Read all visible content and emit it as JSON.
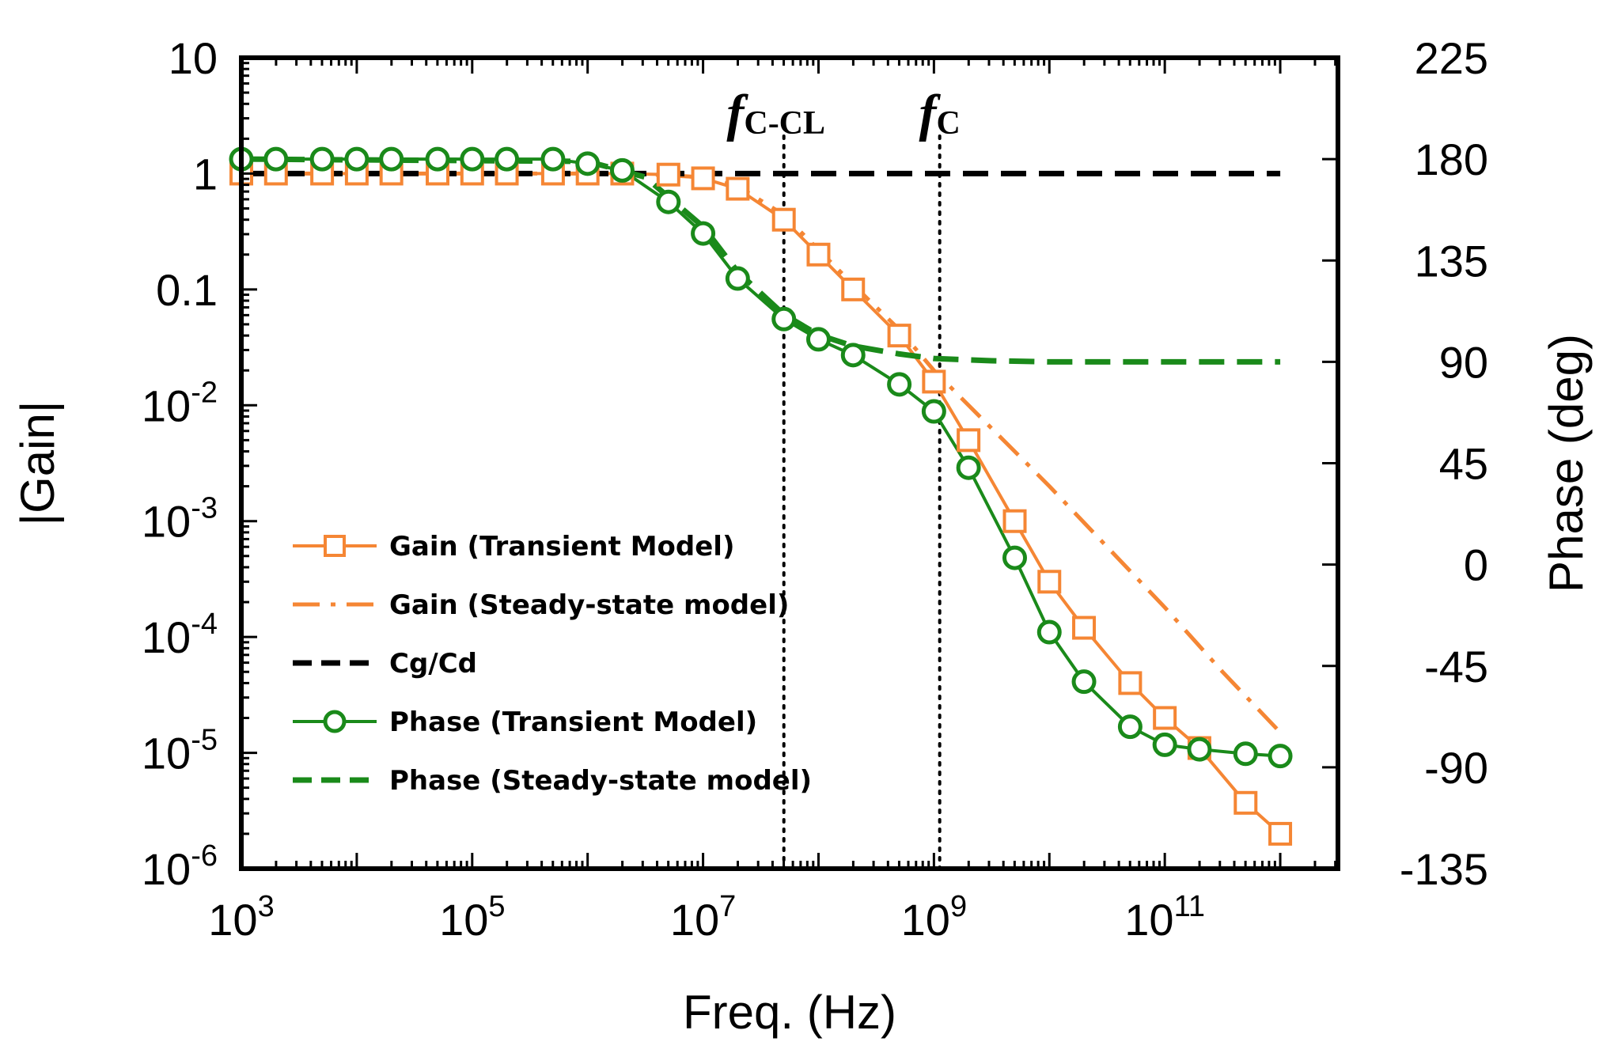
{
  "chart_data": {
    "type": "line",
    "xlabel": "Freq. (Hz)",
    "ylabel_left": "|Gain|",
    "ylabel_right": "Phase (deg)",
    "x_scale": "log",
    "xlim_exp": [
      3,
      12.5
    ],
    "x_ticks": [
      {
        "base": "10",
        "exp": "3",
        "e": 3
      },
      {
        "base": "10",
        "exp": "5",
        "e": 5
      },
      {
        "base": "10",
        "exp": "7",
        "e": 7
      },
      {
        "base": "10",
        "exp": "9",
        "e": 9
      },
      {
        "base": "10",
        "exp": "11",
        "e": 11
      }
    ],
    "y_left_scale": "log",
    "ylim_left_exp": [
      -6,
      1
    ],
    "y_left_ticks": [
      {
        "text": "10",
        "e": 1
      },
      {
        "text": "1",
        "e": 0
      },
      {
        "text": "0.1",
        "e": -1
      },
      {
        "base": "10",
        "exp": "-2",
        "e": -2
      },
      {
        "base": "10",
        "exp": "-3",
        "e": -3
      },
      {
        "base": "10",
        "exp": "-4",
        "e": -4
      },
      {
        "base": "10",
        "exp": "-5",
        "e": -5
      },
      {
        "base": "10",
        "exp": "-6",
        "e": -6
      }
    ],
    "ylim_right": [
      -135,
      225
    ],
    "y_right_ticks": [
      "225",
      "180",
      "135",
      "90",
      "45",
      "0",
      "-45",
      "-90",
      "-135"
    ],
    "vlines": [
      {
        "label_main": "f",
        "label_sub": "C-CL",
        "x_exp": 7.7
      },
      {
        "label_main": "f",
        "label_sub": "C",
        "x_exp": 9.05
      }
    ],
    "series": [
      {
        "name": "Gain (Transient Model)",
        "color": "#f58634",
        "style": "solid",
        "marker": "square",
        "axis": "left",
        "points": [
          [
            3,
            1
          ],
          [
            3.3,
            1
          ],
          [
            3.7,
            1
          ],
          [
            4,
            1
          ],
          [
            4.3,
            1
          ],
          [
            4.7,
            1
          ],
          [
            5,
            1
          ],
          [
            5.3,
            1
          ],
          [
            5.7,
            1
          ],
          [
            6,
            1
          ],
          [
            6.3,
            1
          ],
          [
            6.7,
            0.98
          ],
          [
            7,
            0.91
          ],
          [
            7.3,
            0.74
          ],
          [
            7.7,
            0.4
          ],
          [
            8,
            0.2
          ],
          [
            8.3,
            0.1
          ],
          [
            8.7,
            0.04
          ],
          [
            9,
            0.016
          ],
          [
            9.3,
            0.005
          ],
          [
            9.7,
            0.001
          ],
          [
            10,
            0.0003
          ],
          [
            10.3,
            0.00012
          ],
          [
            10.7,
            4e-05
          ],
          [
            11,
            2e-05
          ],
          [
            11.3,
            1.1e-05
          ],
          [
            11.7,
            3.7e-06
          ],
          [
            12,
            2e-06
          ]
        ]
      },
      {
        "name": "Gain (Steady-state model)",
        "color": "#f58634",
        "style": "dashdot",
        "marker": "none",
        "axis": "left",
        "points": [
          [
            3,
            1
          ],
          [
            6,
            1
          ],
          [
            6.5,
            0.99
          ],
          [
            7,
            0.93
          ],
          [
            7.3,
            0.78
          ],
          [
            7.7,
            0.44
          ],
          [
            8,
            0.22
          ],
          [
            8.3,
            0.11
          ],
          [
            8.7,
            0.045
          ],
          [
            9,
            0.02
          ],
          [
            9.3,
            0.01
          ],
          [
            9.7,
            0.004
          ],
          [
            10,
            0.002
          ],
          [
            10.5,
            0.0006
          ],
          [
            11,
            0.00018
          ],
          [
            11.5,
            5e-05
          ],
          [
            12,
            1.5e-05
          ]
        ]
      },
      {
        "name": "Cg/Cd",
        "color": "#000000",
        "style": "dash",
        "marker": "none",
        "axis": "left",
        "points": [
          [
            3,
            1
          ],
          [
            12,
            1
          ]
        ]
      },
      {
        "name": "Phase (Transient Model)",
        "color": "#1a8a1a",
        "style": "solid",
        "marker": "circle",
        "axis": "right",
        "points": [
          [
            3,
            180
          ],
          [
            3.3,
            180
          ],
          [
            3.7,
            180
          ],
          [
            4,
            180
          ],
          [
            4.3,
            180
          ],
          [
            4.7,
            180
          ],
          [
            5,
            180
          ],
          [
            5.3,
            180
          ],
          [
            5.7,
            180
          ],
          [
            6,
            178
          ],
          [
            6.3,
            175
          ],
          [
            6.7,
            161
          ],
          [
            7,
            147
          ],
          [
            7.3,
            127
          ],
          [
            7.7,
            109
          ],
          [
            8,
            100
          ],
          [
            8.3,
            93
          ],
          [
            8.7,
            80
          ],
          [
            9,
            68
          ],
          [
            9.3,
            43
          ],
          [
            9.7,
            3
          ],
          [
            10,
            -30
          ],
          [
            10.3,
            -52
          ],
          [
            10.7,
            -72
          ],
          [
            11,
            -80
          ],
          [
            11.3,
            -82
          ],
          [
            11.7,
            -84
          ],
          [
            12,
            -85
          ]
        ]
      },
      {
        "name": "Phase (Steady-state model)",
        "color": "#1a8a1a",
        "style": "dash",
        "marker": "none",
        "axis": "right",
        "points": [
          [
            3,
            180
          ],
          [
            6,
            179
          ],
          [
            6.5,
            172
          ],
          [
            7,
            150
          ],
          [
            7.3,
            130
          ],
          [
            7.7,
            111
          ],
          [
            8,
            102
          ],
          [
            8.3,
            97
          ],
          [
            8.7,
            93.5
          ],
          [
            9,
            91.5
          ],
          [
            9.5,
            90.5
          ],
          [
            10,
            90
          ],
          [
            11,
            90
          ],
          [
            12,
            90
          ]
        ]
      }
    ]
  }
}
